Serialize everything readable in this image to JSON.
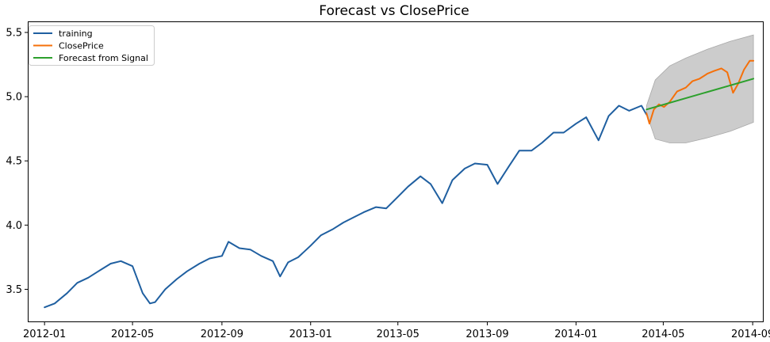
{
  "chart_data": {
    "type": "line",
    "title": "Forecast vs ClosePrice",
    "xlabel": "",
    "ylabel": "",
    "x_ticks": [
      "2012-01",
      "2012-05",
      "2012-09",
      "2013-01",
      "2013-05",
      "2013-09",
      "2014-01",
      "2014-05",
      "2014-09"
    ],
    "y_ticks": [
      "3.5",
      "4.0",
      "4.5",
      "5.0",
      "5.5"
    ],
    "xlim": [
      "2011-12-10",
      "2014-09-15"
    ],
    "ylim": [
      3.25,
      5.58
    ],
    "legend_position": "top-left",
    "grid": false,
    "series": [
      {
        "name": "training",
        "color": "#1f5fa0",
        "points": [
          [
            "2012-01-01",
            3.36
          ],
          [
            "2012-01-15",
            3.39
          ],
          [
            "2012-02-01",
            3.47
          ],
          [
            "2012-02-15",
            3.55
          ],
          [
            "2012-03-01",
            3.59
          ],
          [
            "2012-03-15",
            3.64
          ],
          [
            "2012-04-01",
            3.7
          ],
          [
            "2012-04-15",
            3.72
          ],
          [
            "2012-05-01",
            3.68
          ],
          [
            "2012-05-15",
            3.47
          ],
          [
            "2012-05-25",
            3.39
          ],
          [
            "2012-06-01",
            3.4
          ],
          [
            "2012-06-15",
            3.5
          ],
          [
            "2012-07-01",
            3.58
          ],
          [
            "2012-07-15",
            3.64
          ],
          [
            "2012-08-01",
            3.7
          ],
          [
            "2012-08-15",
            3.74
          ],
          [
            "2012-09-01",
            3.76
          ],
          [
            "2012-09-10",
            3.87
          ],
          [
            "2012-09-25",
            3.82
          ],
          [
            "2012-10-10",
            3.81
          ],
          [
            "2012-10-25",
            3.76
          ],
          [
            "2012-11-10",
            3.72
          ],
          [
            "2012-11-20",
            3.6
          ],
          [
            "2012-12-01",
            3.71
          ],
          [
            "2012-12-15",
            3.75
          ],
          [
            "2013-01-01",
            3.84
          ],
          [
            "2013-01-15",
            3.92
          ],
          [
            "2013-02-01",
            3.97
          ],
          [
            "2013-02-15",
            4.02
          ],
          [
            "2013-03-01",
            4.06
          ],
          [
            "2013-03-15",
            4.1
          ],
          [
            "2013-04-01",
            4.14
          ],
          [
            "2013-04-15",
            4.13
          ],
          [
            "2013-05-01",
            4.22
          ],
          [
            "2013-05-15",
            4.3
          ],
          [
            "2013-06-01",
            4.38
          ],
          [
            "2013-06-15",
            4.32
          ],
          [
            "2013-07-01",
            4.17
          ],
          [
            "2013-07-15",
            4.35
          ],
          [
            "2013-08-01",
            4.44
          ],
          [
            "2013-08-15",
            4.48
          ],
          [
            "2013-09-01",
            4.47
          ],
          [
            "2013-09-15",
            4.32
          ],
          [
            "2013-10-01",
            4.46
          ],
          [
            "2013-10-15",
            4.58
          ],
          [
            "2013-11-01",
            4.58
          ],
          [
            "2013-11-15",
            4.64
          ],
          [
            "2013-12-01",
            4.72
          ],
          [
            "2013-12-15",
            4.72
          ],
          [
            "2014-01-01",
            4.79
          ],
          [
            "2014-01-15",
            4.84
          ],
          [
            "2014-02-01",
            4.66
          ],
          [
            "2014-02-15",
            4.85
          ],
          [
            "2014-03-01",
            4.93
          ],
          [
            "2014-03-15",
            4.89
          ],
          [
            "2014-04-01",
            4.93
          ],
          [
            "2014-04-08",
            4.86
          ]
        ]
      },
      {
        "name": "ClosePrice",
        "color": "#f5700a",
        "points": [
          [
            "2014-04-08",
            4.87
          ],
          [
            "2014-04-12",
            4.79
          ],
          [
            "2014-04-18",
            4.9
          ],
          [
            "2014-04-25",
            4.94
          ],
          [
            "2014-05-02",
            4.92
          ],
          [
            "2014-05-10",
            4.96
          ],
          [
            "2014-05-20",
            5.04
          ],
          [
            "2014-06-01",
            5.07
          ],
          [
            "2014-06-10",
            5.12
          ],
          [
            "2014-06-20",
            5.14
          ],
          [
            "2014-07-01",
            5.18
          ],
          [
            "2014-07-10",
            5.2
          ],
          [
            "2014-07-20",
            5.22
          ],
          [
            "2014-07-28",
            5.19
          ],
          [
            "2014-08-05",
            5.03
          ],
          [
            "2014-08-12",
            5.1
          ],
          [
            "2014-08-20",
            5.21
          ],
          [
            "2014-08-28",
            5.28
          ],
          [
            "2014-09-02",
            5.28
          ]
        ]
      },
      {
        "name": "Forecast from Signal",
        "color": "#2ca02c",
        "points": [
          [
            "2014-04-08",
            4.9
          ],
          [
            "2014-09-02",
            5.14
          ]
        ]
      }
    ],
    "confidence_band": {
      "color": "#cccccc",
      "upper": [
        [
          "2014-04-08",
          4.93
        ],
        [
          "2014-04-20",
          5.13
        ],
        [
          "2014-05-10",
          5.24
        ],
        [
          "2014-06-01",
          5.3
        ],
        [
          "2014-07-01",
          5.37
        ],
        [
          "2014-08-01",
          5.43
        ],
        [
          "2014-09-02",
          5.48
        ]
      ],
      "lower": [
        [
          "2014-04-08",
          4.87
        ],
        [
          "2014-04-20",
          4.67
        ],
        [
          "2014-05-10",
          4.64
        ],
        [
          "2014-06-01",
          4.64
        ],
        [
          "2014-07-01",
          4.68
        ],
        [
          "2014-08-01",
          4.73
        ],
        [
          "2014-09-02",
          4.8
        ]
      ]
    }
  }
}
